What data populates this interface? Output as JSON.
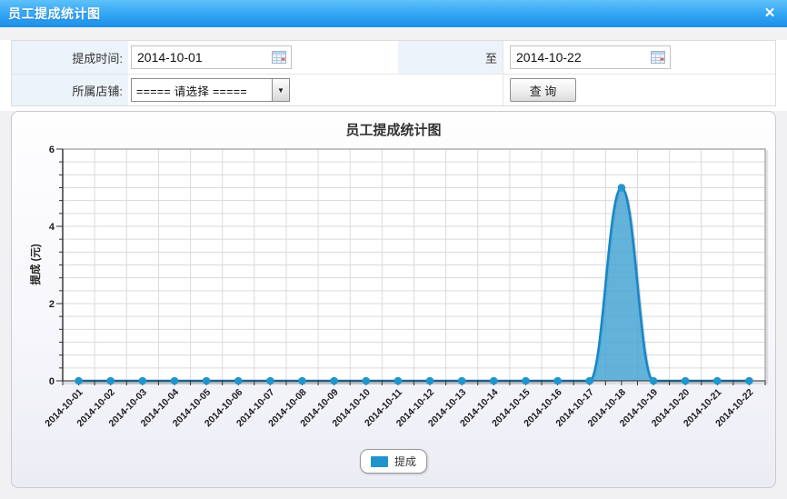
{
  "dialog": {
    "title": "员工提成统计图",
    "close_label": "×"
  },
  "form": {
    "time_label": "提成时间:",
    "date_from": "2014-10-01",
    "to_label": "至",
    "date_to": "2014-10-22",
    "shop_label": "所属店铺:",
    "shop_selected": "===== 请选择 =====",
    "query_button": "查  询",
    "dropdown_arrow": "▼"
  },
  "chart_data": {
    "type": "area",
    "title": "员工提成统计图",
    "ylabel": "提成 (元)",
    "xlabel": "",
    "categories": [
      "2014-10-01",
      "2014-10-02",
      "2014-10-03",
      "2014-10-04",
      "2014-10-05",
      "2014-10-06",
      "2014-10-07",
      "2014-10-08",
      "2014-10-09",
      "2014-10-10",
      "2014-10-11",
      "2014-10-12",
      "2014-10-13",
      "2014-10-14",
      "2014-10-15",
      "2014-10-16",
      "2014-10-17",
      "2014-10-18",
      "2014-10-19",
      "2014-10-20",
      "2014-10-21",
      "2014-10-22"
    ],
    "series": [
      {
        "name": "提成",
        "values": [
          0,
          0,
          0,
          0,
          0,
          0,
          0,
          0,
          0,
          0,
          0,
          0,
          0,
          0,
          0,
          0,
          0,
          5,
          0,
          0,
          0,
          0
        ]
      }
    ],
    "ylim": [
      0,
      6
    ],
    "yticks": [
      0,
      2,
      4,
      6
    ],
    "y_minor_divisions_per_major": 6,
    "grid": true,
    "legend_position": "bottom",
    "colors": {
      "line": "#1787c8",
      "fill": "#47a4d3",
      "marker": "#2095cc",
      "grid": "#dadade",
      "grid_border": "#9b9ba0",
      "axis": "#333333",
      "header": "#2d9ef0"
    }
  }
}
